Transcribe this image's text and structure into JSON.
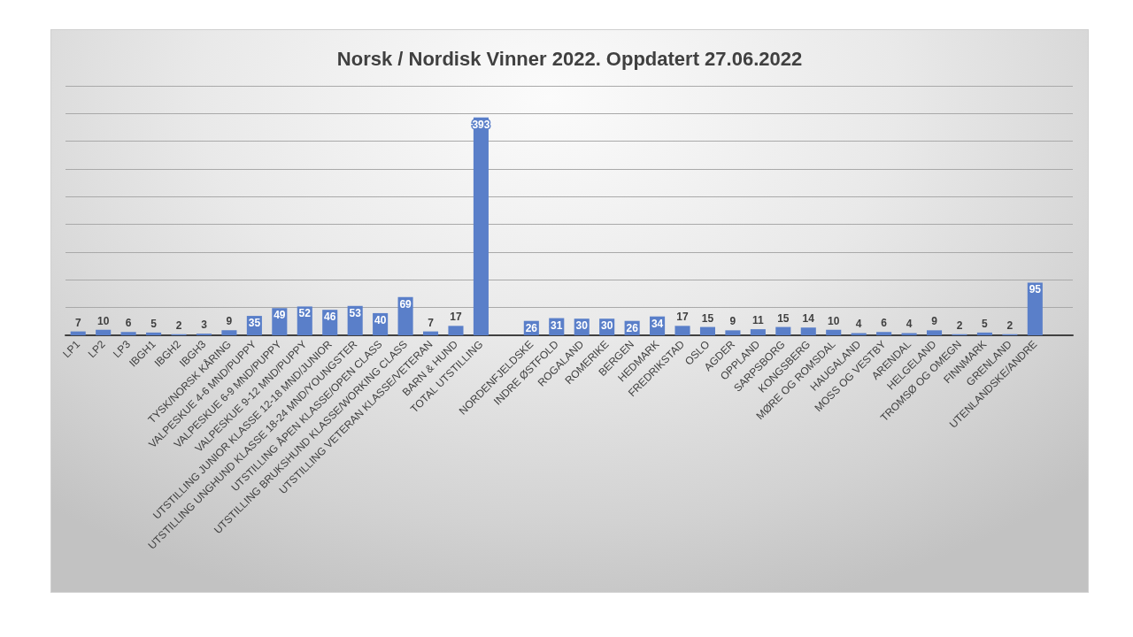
{
  "chart_data": {
    "type": "bar",
    "title": "Norsk / Nordisk Vinner 2022. Oppdatert 27.06.2022",
    "categories": [
      "LP1",
      "LP2",
      "LP3",
      "IBGH1",
      "IBGH2",
      "IBGH3",
      "TYSK/NORSK KÅRING",
      "VALPESKUE 4-6 MND/PUPPY",
      "VALPESKUE 6-9 MND/PUPPY",
      "VALPESKUE 9-12 MND/PUPPY",
      "UTSTILLING JUNIOR KLASSE 12-18 MND/JUNIOR",
      "UTSTILLING UNGHUND KLASSE 18-24 MND/YOUNGSTER",
      "UTSTILLING ÅPEN KLASSE/OPEN CLASS",
      "UTSTILLING BRUKSHUND KLASSE/WORKING CLASS",
      "UTSTILLING VETERAN KLASSE/VETERAN",
      "BARN & HUND",
      "TOTAL UTSTILLING",
      null,
      "NORDENFJELDSKE",
      "INDRE ØSTFOLD",
      "ROGALAND",
      "ROMERIKE",
      "BERGEN",
      "HEDMARK",
      "FREDRIKSTAD",
      "OSLO",
      "AGDER",
      "OPPLAND",
      "SARPSBORG",
      "KONGSBERG",
      "MØRE OG ROMSDAL",
      "HAUGALAND",
      "MOSS OG VESTBY",
      "ARENDAL",
      "HELGELAND",
      "TROMSØ OG OMEGN",
      "FINNMARK",
      "GRENLAND",
      "UTENLANDSKE/ANDRE",
      null
    ],
    "values": [
      7,
      10,
      6,
      5,
      2,
      3,
      9,
      35,
      49,
      52,
      46,
      53,
      40,
      69,
      7,
      17,
      393,
      null,
      26,
      31,
      30,
      30,
      26,
      34,
      17,
      15,
      9,
      11,
      15,
      14,
      10,
      4,
      6,
      4,
      9,
      2,
      5,
      2,
      95,
      null
    ],
    "color": "#5a7fc9",
    "ylim": [
      0,
      450
    ],
    "yticks": [
      {
        "value": 0,
        "label": null
      },
      {
        "value": 50,
        "label": null
      },
      {
        "value": 100,
        "label": null
      },
      {
        "value": 150,
        "label": null
      },
      {
        "value": 200,
        "label": null
      },
      {
        "value": 250,
        "label": null
      },
      {
        "value": 300,
        "label": null
      },
      {
        "value": 350,
        "label": null
      },
      {
        "value": 400,
        "label": null
      },
      {
        "value": 450,
        "label": null
      }
    ],
    "grid": "y",
    "tick_labels": "x",
    "data_labels": true
  }
}
